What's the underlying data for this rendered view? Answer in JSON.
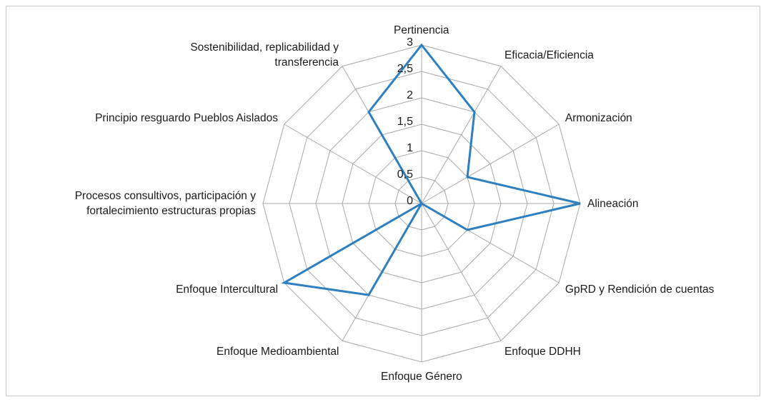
{
  "chart_data": {
    "type": "radar",
    "categories": [
      "Pertinencia",
      "Eficacia/Eficiencia",
      "Armonización",
      "Alineación",
      "GpRD y Rendición de cuentas",
      "Enfoque DDHH",
      "Enfoque Género",
      "Enfoque Medioambiental",
      "Enfoque Intercultural",
      "Procesos consultivos, participación y fortalecimiento estructuras propias",
      "Principio resguardo Pueblos Aislados",
      "Sostenibilidad, replicabilidad y transferencia"
    ],
    "series": [
      {
        "color": "#2e7fc0",
        "values": [
          3,
          2,
          1,
          3,
          1,
          0,
          0,
          2,
          3,
          0,
          0,
          2
        ]
      }
    ],
    "ylim": [
      0,
      3
    ],
    "yticks": [
      0,
      {
        "value": 0.5,
        "label": "0,5"
      },
      1,
      {
        "value": 1.5,
        "label": "1,5"
      },
      2,
      {
        "value": 2.5,
        "label": "2,5"
      },
      3
    ],
    "grid": true
  }
}
